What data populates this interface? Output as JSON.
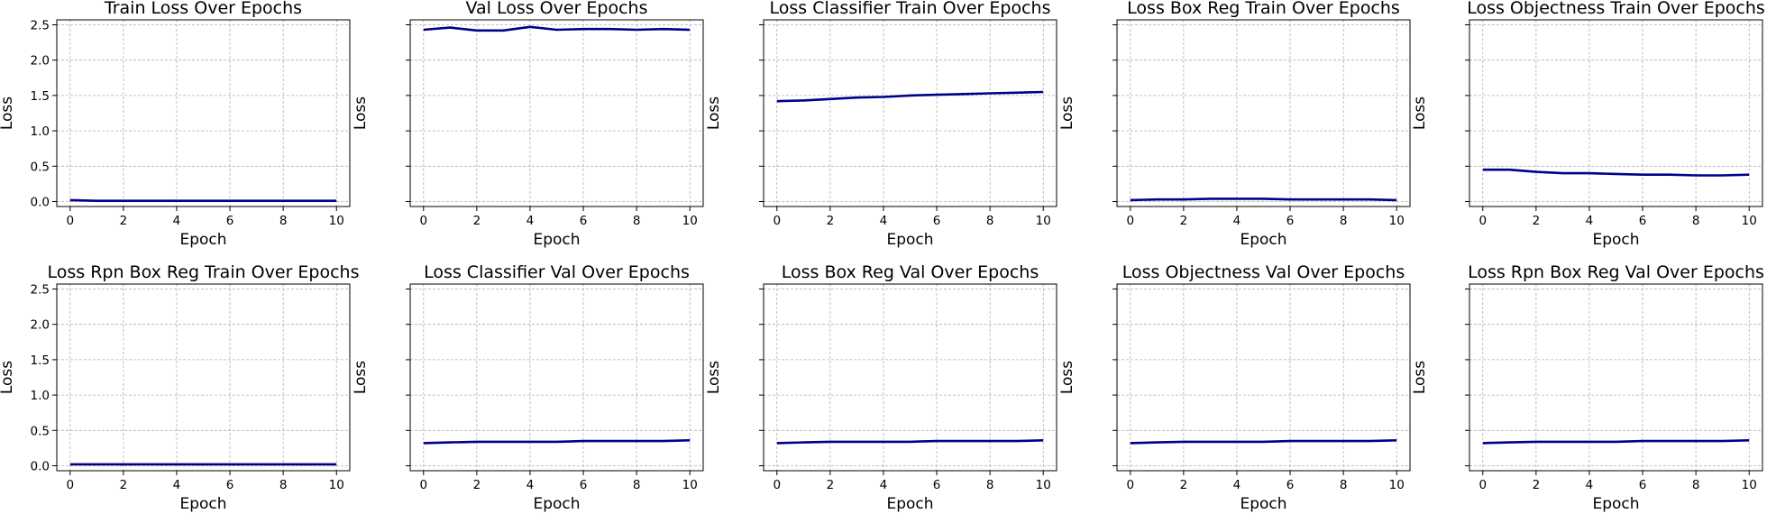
{
  "chart_data": [
    {
      "type": "line",
      "title": "Train Loss Over Epochs",
      "xlabel": "Epoch",
      "ylabel": "Loss",
      "x": [
        0,
        1,
        2,
        3,
        4,
        5,
        6,
        7,
        8,
        9,
        10
      ],
      "y": [
        0.02,
        0.01,
        0.01,
        0.01,
        0.01,
        0.01,
        0.01,
        0.01,
        0.01,
        0.01,
        0.01
      ],
      "xlim": [
        -0.5,
        10.5
      ],
      "ylim": [
        -0.07,
        2.57
      ],
      "xticks": [
        "0",
        "2",
        "4",
        "6",
        "8",
        "10"
      ],
      "yticks": [
        "0.0",
        "0.5",
        "1.0",
        "1.5",
        "2.0",
        "2.5"
      ],
      "grid": true,
      "color": "#00008b"
    },
    {
      "type": "line",
      "title": "Val Loss Over Epochs",
      "xlabel": "Epoch",
      "ylabel": "Loss",
      "x": [
        0,
        1,
        2,
        3,
        4,
        5,
        6,
        7,
        8,
        9,
        10
      ],
      "y": [
        2.43,
        2.46,
        2.42,
        2.42,
        2.47,
        2.43,
        2.44,
        2.44,
        2.43,
        2.44,
        2.43
      ],
      "xlim": [
        -0.5,
        10.5
      ],
      "ylim": [
        -0.07,
        2.57
      ],
      "xticks": [
        "0",
        "2",
        "4",
        "6",
        "8",
        "10"
      ],
      "yticks": [],
      "grid": true,
      "color": "#00008b"
    },
    {
      "type": "line",
      "title": "Loss Classifier Train Over Epochs",
      "xlabel": "Epoch",
      "ylabel": "Loss",
      "x": [
        0,
        1,
        2,
        3,
        4,
        5,
        6,
        7,
        8,
        9,
        10
      ],
      "y": [
        1.42,
        1.43,
        1.45,
        1.47,
        1.48,
        1.5,
        1.51,
        1.52,
        1.53,
        1.54,
        1.55
      ],
      "xlim": [
        -0.5,
        10.5
      ],
      "ylim": [
        -0.07,
        2.57
      ],
      "xticks": [
        "0",
        "2",
        "4",
        "6",
        "8",
        "10"
      ],
      "yticks": [],
      "grid": true,
      "color": "#00008b"
    },
    {
      "type": "line",
      "title": "Loss Box Reg Train Over Epochs",
      "xlabel": "Epoch",
      "ylabel": "Loss",
      "x": [
        0,
        1,
        2,
        3,
        4,
        5,
        6,
        7,
        8,
        9,
        10
      ],
      "y": [
        0.02,
        0.03,
        0.03,
        0.04,
        0.04,
        0.04,
        0.03,
        0.03,
        0.03,
        0.03,
        0.02
      ],
      "xlim": [
        -0.5,
        10.5
      ],
      "ylim": [
        -0.07,
        2.57
      ],
      "xticks": [
        "0",
        "2",
        "4",
        "6",
        "8",
        "10"
      ],
      "yticks": [],
      "grid": true,
      "color": "#00008b"
    },
    {
      "type": "line",
      "title": "Loss Objectness Train Over Epochs",
      "xlabel": "Epoch",
      "ylabel": "Loss",
      "x": [
        0,
        1,
        2,
        3,
        4,
        5,
        6,
        7,
        8,
        9,
        10
      ],
      "y": [
        0.45,
        0.45,
        0.42,
        0.4,
        0.4,
        0.39,
        0.38,
        0.38,
        0.37,
        0.37,
        0.38
      ],
      "xlim": [
        -0.5,
        10.5
      ],
      "ylim": [
        -0.07,
        2.57
      ],
      "xticks": [
        "0",
        "2",
        "4",
        "6",
        "8",
        "10"
      ],
      "yticks": [],
      "grid": true,
      "color": "#00008b"
    },
    {
      "type": "line",
      "title": "Loss Rpn Box Reg Train Over Epochs",
      "xlabel": "Epoch",
      "ylabel": "Loss",
      "x": [
        0,
        1,
        2,
        3,
        4,
        5,
        6,
        7,
        8,
        9,
        10
      ],
      "y": [
        0.02,
        0.02,
        0.02,
        0.02,
        0.02,
        0.02,
        0.02,
        0.02,
        0.02,
        0.02,
        0.02
      ],
      "xlim": [
        -0.5,
        10.5
      ],
      "ylim": [
        -0.07,
        2.57
      ],
      "xticks": [
        "0",
        "2",
        "4",
        "6",
        "8",
        "10"
      ],
      "yticks": [
        "0.0",
        "0.5",
        "1.0",
        "1.5",
        "2.0",
        "2.5"
      ],
      "grid": true,
      "color": "#00008b"
    },
    {
      "type": "line",
      "title": "Loss Classifier Val Over Epochs",
      "xlabel": "Epoch",
      "ylabel": "Loss",
      "x": [
        0,
        1,
        2,
        3,
        4,
        5,
        6,
        7,
        8,
        9,
        10
      ],
      "y": [
        0.32,
        0.33,
        0.34,
        0.34,
        0.34,
        0.34,
        0.35,
        0.35,
        0.35,
        0.35,
        0.36
      ],
      "xlim": [
        -0.5,
        10.5
      ],
      "ylim": [
        -0.07,
        2.57
      ],
      "xticks": [
        "0",
        "2",
        "4",
        "6",
        "8",
        "10"
      ],
      "yticks": [],
      "grid": true,
      "color": "#00008b"
    },
    {
      "type": "line",
      "title": "Loss Box Reg Val Over Epochs",
      "xlabel": "Epoch",
      "ylabel": "Loss",
      "x": [
        0,
        1,
        2,
        3,
        4,
        5,
        6,
        7,
        8,
        9,
        10
      ],
      "y": [
        0.32,
        0.33,
        0.34,
        0.34,
        0.34,
        0.34,
        0.35,
        0.35,
        0.35,
        0.35,
        0.36
      ],
      "xlim": [
        -0.5,
        10.5
      ],
      "ylim": [
        -0.07,
        2.57
      ],
      "xticks": [
        "0",
        "2",
        "4",
        "6",
        "8",
        "10"
      ],
      "yticks": [],
      "grid": true,
      "color": "#00008b"
    },
    {
      "type": "line",
      "title": "Loss Objectness Val Over Epochs",
      "xlabel": "Epoch",
      "ylabel": "Loss",
      "x": [
        0,
        1,
        2,
        3,
        4,
        5,
        6,
        7,
        8,
        9,
        10
      ],
      "y": [
        0.32,
        0.33,
        0.34,
        0.34,
        0.34,
        0.34,
        0.35,
        0.35,
        0.35,
        0.35,
        0.36
      ],
      "xlim": [
        -0.5,
        10.5
      ],
      "ylim": [
        -0.07,
        2.57
      ],
      "xticks": [
        "0",
        "2",
        "4",
        "6",
        "8",
        "10"
      ],
      "yticks": [],
      "grid": true,
      "color": "#00008b"
    },
    {
      "type": "line",
      "title": "Loss Rpn Box Reg Val Over Epochs",
      "xlabel": "Epoch",
      "ylabel": "Loss",
      "x": [
        0,
        1,
        2,
        3,
        4,
        5,
        6,
        7,
        8,
        9,
        10
      ],
      "y": [
        0.32,
        0.33,
        0.34,
        0.34,
        0.34,
        0.34,
        0.35,
        0.35,
        0.35,
        0.35,
        0.36
      ],
      "xlim": [
        -0.5,
        10.5
      ],
      "ylim": [
        -0.07,
        2.57
      ],
      "xticks": [
        "0",
        "2",
        "4",
        "6",
        "8",
        "10"
      ],
      "yticks": [],
      "grid": true,
      "color": "#00008b"
    }
  ]
}
